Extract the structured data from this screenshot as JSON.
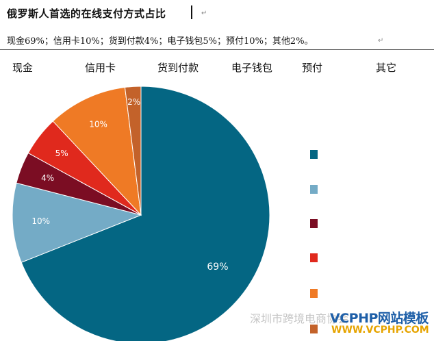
{
  "document": {
    "title": "俄罗斯人首选的在线支付方式占比",
    "summary": "现金69%；信用卡10%；货到付款4%；电子钱包5%；预付10%；其他2%。",
    "paragraph_mark": "↵"
  },
  "watermark": {
    "brand": "VCPHP网站模板",
    "url": "WWW.VCPHP.COM",
    "overlay_text": "深圳市跨境电商协会"
  },
  "chart_data": {
    "type": "pie",
    "title": "",
    "categories": [
      "现金",
      "信用卡",
      "货到付款",
      "电子钱包",
      "预付",
      "其它"
    ],
    "values": [
      69,
      10,
      4,
      5,
      10,
      2
    ],
    "value_labels": [
      "69%",
      "10%",
      "4%",
      "5%",
      "10%",
      "2%"
    ],
    "colors": [
      "#046683",
      "#74abc6",
      "#7b0d23",
      "#e0291d",
      "#ef7a25",
      "#c3622a"
    ],
    "start_angle_deg": 0,
    "direction": "clockwise",
    "legend_position": "right"
  }
}
